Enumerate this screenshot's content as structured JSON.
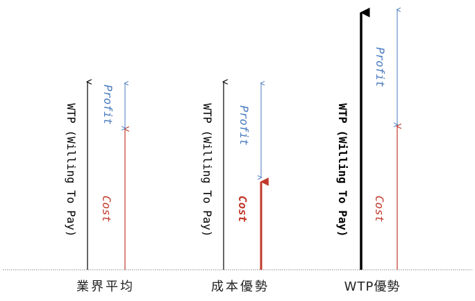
{
  "colors": {
    "wtp": "#000000",
    "profit": "#4a7bbf",
    "cost": "#c0392b",
    "baseline": "#888888"
  },
  "labels": {
    "wtp": "WTP (Willing To Pay)",
    "profit": "Profit",
    "cost": "Cost"
  },
  "groups": [
    {
      "name": "業界平均"
    },
    {
      "name": "成本優勢"
    },
    {
      "name": "WTP優勢"
    }
  ]
}
